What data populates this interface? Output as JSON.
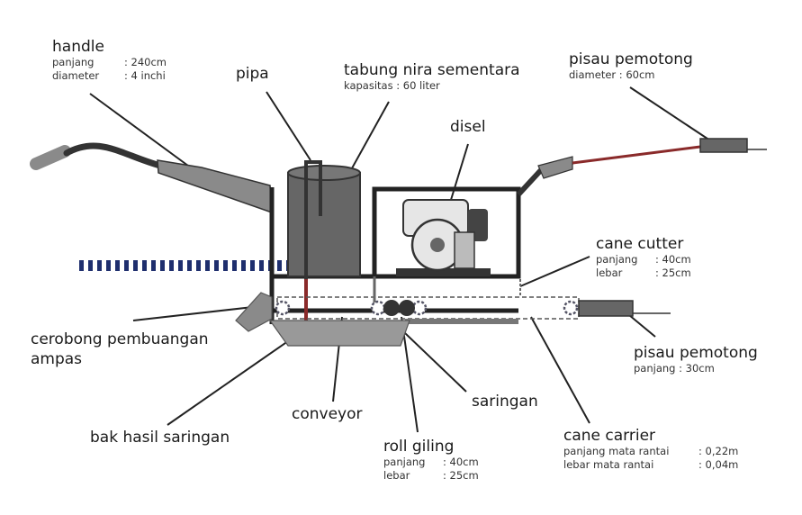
{
  "labels": {
    "handle": {
      "title": "handle",
      "specs": [
        {
          "k": "panjang",
          "v": ": 240cm"
        },
        {
          "k": "diameter",
          "v": ": 4 inchi"
        }
      ]
    },
    "pipa": {
      "title": "pipa"
    },
    "tabung": {
      "title": "tabung nira sementara",
      "spec": "kapasitas : 60 liter"
    },
    "disel": {
      "title": "disel"
    },
    "pisau_top": {
      "title": "pisau pemotong",
      "spec": "diameter : 60cm"
    },
    "cane_cutter": {
      "title": "cane cutter",
      "specs": [
        {
          "k": "panjang",
          "v": ": 40cm"
        },
        {
          "k": "lebar",
          "v": ": 25cm"
        }
      ]
    },
    "pisau_bottom": {
      "title": "pisau pemotong",
      "spec": "panjang : 30cm"
    },
    "cerobong": {
      "line1": "cerobong pembuangan",
      "line2": "ampas"
    },
    "conveyor": {
      "title": "conveyor"
    },
    "saringan": {
      "title": "saringan"
    },
    "bak": {
      "title": "bak hasil saringan"
    },
    "roll": {
      "title": "roll giling",
      "specs": [
        {
          "k": "panjang",
          "v": ": 40cm"
        },
        {
          "k": "lebar",
          "v": ": 25cm"
        }
      ]
    },
    "cane_carrier": {
      "title": "cane carrier",
      "specs": [
        {
          "k": "panjang mata rantai",
          "v": ": 0,22m"
        },
        {
          "k": "lebar mata rantai",
          "v": ": 0,04m"
        }
      ]
    }
  },
  "colors": {
    "frame": "#222222",
    "body": "#666666",
    "handle": "#8a8a8a",
    "dots": "#1f2f6e",
    "pipe": "#8a2a2a"
  }
}
